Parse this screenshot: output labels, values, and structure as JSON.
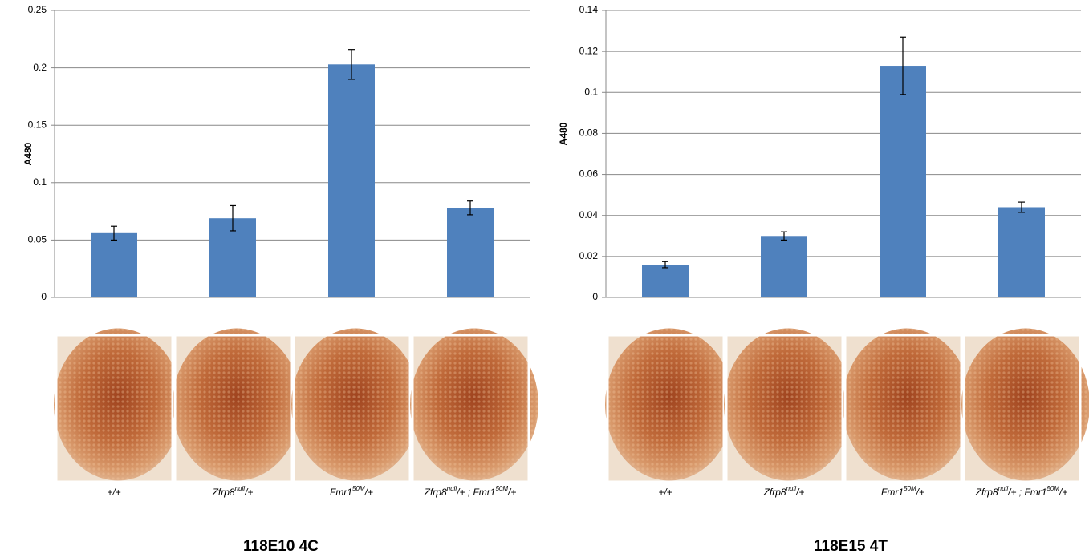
{
  "chart_data": [
    {
      "type": "bar",
      "title": "118E10 4C",
      "ylabel": "A480",
      "categories": [
        [
          "+/+"
        ],
        [
          "Zfrp8",
          "null",
          "/+"
        ],
        [
          "Fmr1",
          "50M",
          "/+"
        ],
        [
          "Zfrp8",
          "null",
          "/+ ; Fmr1",
          "50M",
          "/+"
        ]
      ],
      "values": [
        0.056,
        0.069,
        0.203,
        0.078
      ],
      "errors": [
        0.006,
        0.011,
        0.013,
        0.006
      ],
      "color": "#4f81bd",
      "ylim": [
        0,
        0.25
      ],
      "yticks": [
        0,
        0.05,
        0.1,
        0.15,
        0.2,
        0.25
      ],
      "grid": true
    },
    {
      "type": "bar",
      "title": "118E15 4T",
      "ylabel": "A480",
      "categories": [
        [
          "+/+"
        ],
        [
          "Zfrp8",
          "null",
          "/+"
        ],
        [
          "Fmr1",
          "50M",
          "/+"
        ],
        [
          "Zfrp8",
          "null",
          "/+ ; Fmr1",
          "50M",
          "/+"
        ]
      ],
      "values": [
        0.016,
        0.03,
        0.113,
        0.044
      ],
      "errors": [
        0.0015,
        0.002,
        0.014,
        0.0025
      ],
      "color": "#4f81bd",
      "ylim": [
        0,
        0.14
      ],
      "yticks": [
        0,
        0.02,
        0.04,
        0.06,
        0.08,
        0.1,
        0.12,
        0.14
      ],
      "grid": true
    }
  ]
}
